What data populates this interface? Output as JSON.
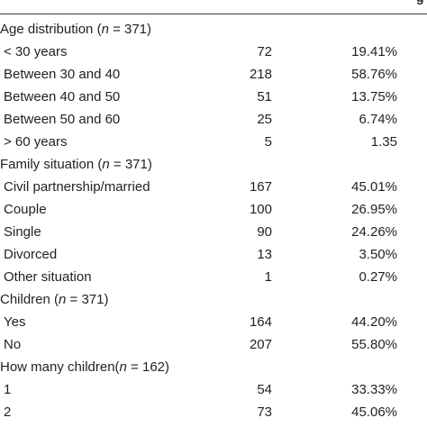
{
  "header_fragment": "g",
  "rows": [
    {
      "type": "head",
      "pre": "Age distribution (",
      "n": "n",
      "post": " = 371)"
    },
    {
      "type": "item",
      "label": "< 30 years",
      "count": "72",
      "pct": "19.41%"
    },
    {
      "type": "item",
      "label": "Between 30 and 40",
      "count": "218",
      "pct": "58.76%"
    },
    {
      "type": "item",
      "label": "Between 40 and 50",
      "count": "51",
      "pct": "13.75%"
    },
    {
      "type": "item",
      "label": "Between 50 and 60",
      "count": "25",
      "pct": "6.74%"
    },
    {
      "type": "item",
      "label": "> 60 years",
      "count": "5",
      "pct": "1.35"
    },
    {
      "type": "head",
      "pre": "Family situation (",
      "n": "n",
      "post": " = 371)"
    },
    {
      "type": "item",
      "label": "Civil partnership/married",
      "count": "167",
      "pct": "45.01%"
    },
    {
      "type": "item",
      "label": "Couple",
      "count": "100",
      "pct": "26.95%"
    },
    {
      "type": "item",
      "label": "Single",
      "count": "90",
      "pct": "24.26%"
    },
    {
      "type": "item",
      "label": "Divorced",
      "count": "13",
      "pct": "3.50%"
    },
    {
      "type": "item",
      "label": "Other situation",
      "count": "1",
      "pct": "0.27%"
    },
    {
      "type": "head",
      "pre": "Children (",
      "n": "n",
      "post": " = 371)"
    },
    {
      "type": "item",
      "label": "Yes",
      "count": "164",
      "pct": "44.20%"
    },
    {
      "type": "item",
      "label": "No",
      "count": "207",
      "pct": "55.80%"
    },
    {
      "type": "head",
      "pre": "How many children(",
      "n": "n",
      "post": " = 162)"
    },
    {
      "type": "item",
      "label": "1",
      "count": "54",
      "pct": "33.33%"
    },
    {
      "type": "item",
      "label": "2",
      "count": "73",
      "pct": "45.06%"
    }
  ]
}
